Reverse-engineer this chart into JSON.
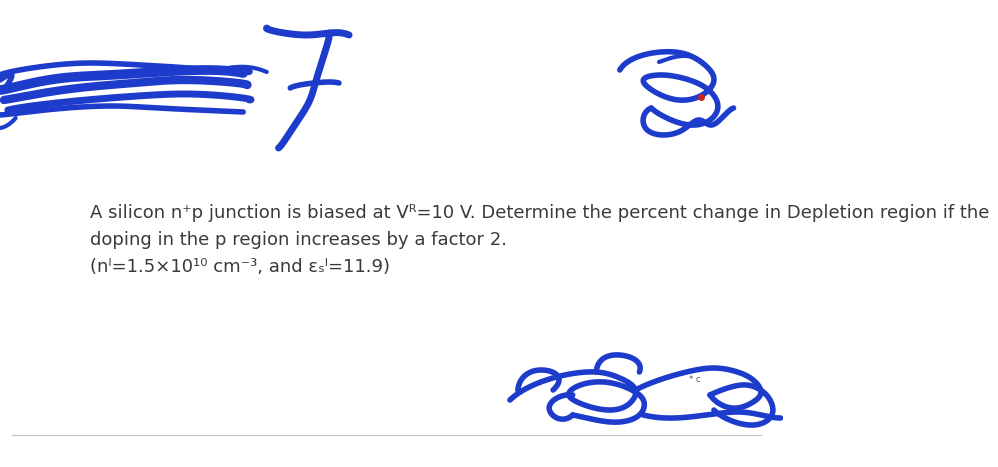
{
  "background_color": "#ffffff",
  "number_color": "#1e3ccc",
  "handwriting_color": "#1e3ccc",
  "text_color": "#3a3a3a",
  "separator_color": "#c0c0c0",
  "text_fontsize": 13.0,
  "line1": "A silicon n⁺p junction is biased at Vᴿ=10 V. Determine the percent change in Depletion region if the",
  "line2": "doping in the p region increases by a factor 2.",
  "line3": "(nᴵ=1.5×10¹⁰ cm⁻³, and εₛᴵ=11.9)"
}
